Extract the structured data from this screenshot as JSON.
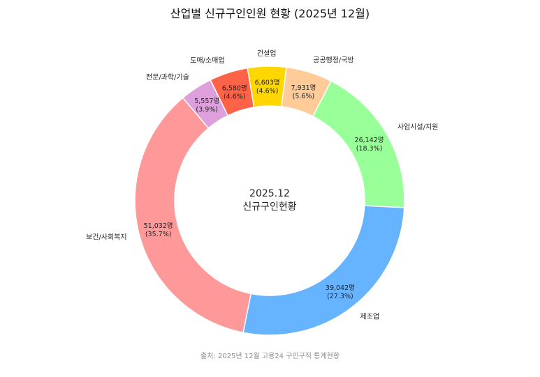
{
  "title": "산업별 신규구인인원 현황 (2025년 12월)",
  "source": "출처: 2025년 12월 고용24 구인구직 통계현황",
  "chart_data": {
    "type": "pie",
    "donut": true,
    "title": "산업별 신규구인인원 현황 (2025년 12월)",
    "center_label": [
      "2025.12",
      "신규구인현황"
    ],
    "categories": [
      "건설업",
      "공공행정/국방",
      "사업시설/지원",
      "제조업",
      "보건/사회복지",
      "전문/과학/기술",
      "도매/소매업"
    ],
    "values": [
      6603,
      7931,
      26142,
      39042,
      51032,
      5557,
      6580
    ],
    "value_labels": [
      "6,603명",
      "7,931명",
      "26,142명",
      "39,042명",
      "51,032명",
      "5,557명",
      "6,580명"
    ],
    "percent_labels": [
      "(4.6%)",
      "(5.6%)",
      "(18.3%)",
      "(27.3%)",
      "(35.7%)",
      "(3.9%)",
      "(4.6%)"
    ],
    "colors": [
      "#FFD700",
      "#FFCC99",
      "#99FF99",
      "#66B3FF",
      "#FF9999",
      "#DDA0DD",
      "#FF6347"
    ],
    "legend": "none"
  }
}
